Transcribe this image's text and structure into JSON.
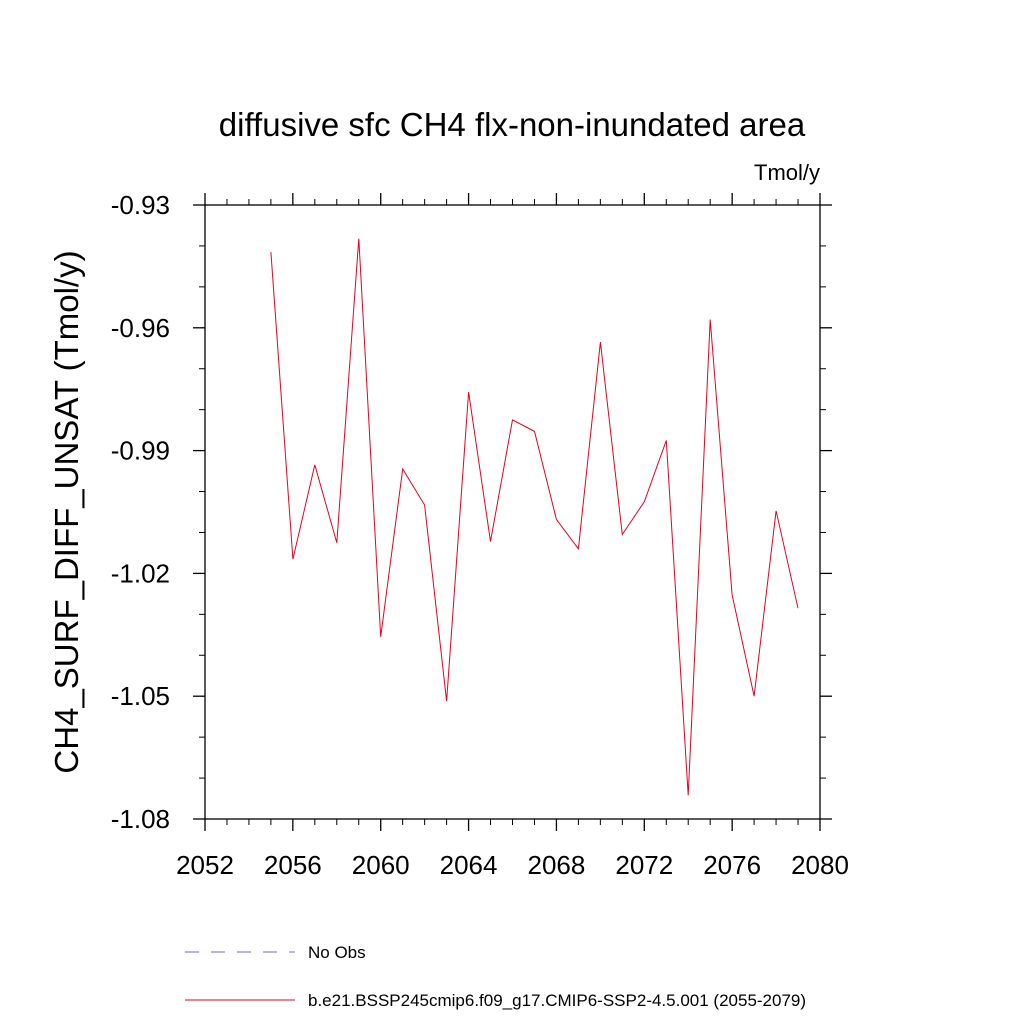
{
  "chart_data": {
    "type": "line",
    "title": "diffusive sfc CH4 flx-non-inundated area",
    "units": "Tmol/y",
    "ylabel": "CH4_SURF_DIFF_UNSAT  (Tmol/y)",
    "xlabel": "",
    "xlim": [
      2052,
      2080
    ],
    "ylim": [
      -1.08,
      -0.93
    ],
    "x_ticks": [
      2052,
      2056,
      2060,
      2064,
      2068,
      2072,
      2076,
      2080
    ],
    "x_tick_labels": [
      "2052",
      "2056",
      "2060",
      "2064",
      "2068",
      "2072",
      "2076",
      "2080"
    ],
    "y_ticks": [
      -0.93,
      -0.96,
      -0.99,
      -1.02,
      -1.05,
      -1.08
    ],
    "y_tick_labels": [
      "-0.93",
      "-0.96",
      "-0.99",
      "-1.02",
      "-1.05",
      "-1.08"
    ],
    "grid": false,
    "legend_position": "bottom",
    "series": [
      {
        "name": "b.e21.BSSP245cmip6.f09_g17.CMIP6-SSP2-4.5.001 (2055-2079)",
        "color": "#e8001c",
        "style": "solid",
        "x": [
          2055,
          2056,
          2057,
          2058,
          2059,
          2060,
          2061,
          2062,
          2063,
          2064,
          2065,
          2066,
          2067,
          2068,
          2069,
          2070,
          2071,
          2072,
          2073,
          2074,
          2075,
          2076,
          2077,
          2078,
          2079
        ],
        "y": [
          -0.9415,
          -1.0165,
          -0.9935,
          -1.0125,
          -0.9382,
          -1.0355,
          -0.9945,
          -1.0033,
          -1.0512,
          -0.9757,
          -1.0122,
          -0.9825,
          -0.9853,
          -1.0068,
          -1.014,
          -0.9635,
          -1.0105,
          -1.0025,
          -0.9875,
          -1.0742,
          -0.958,
          -1.0252,
          -1.05,
          -1.0047,
          -1.0285
        ]
      },
      {
        "name": "No Obs",
        "color": "#6b6bc8",
        "style": "dashed",
        "x": [],
        "y": []
      }
    ]
  }
}
